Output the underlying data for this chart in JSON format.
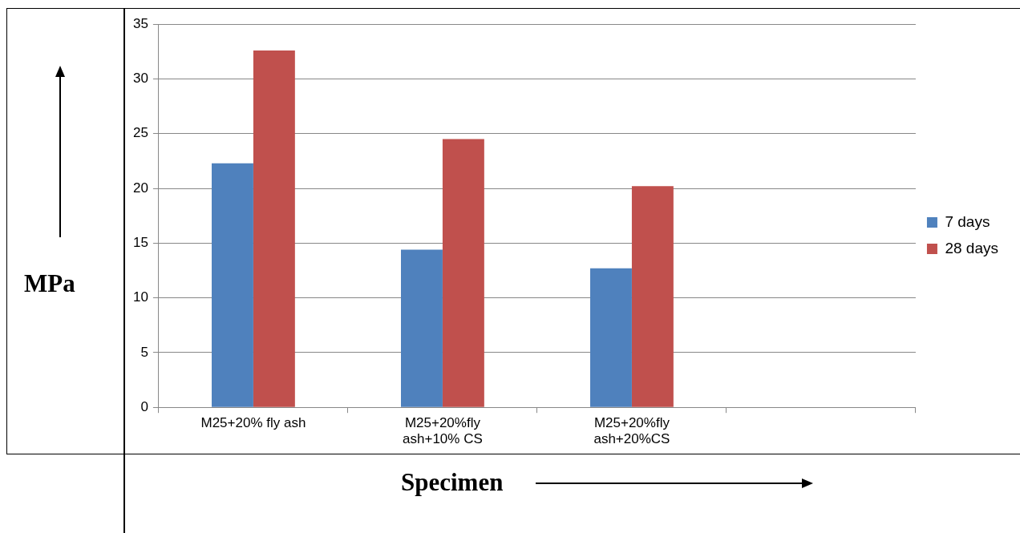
{
  "chart_data": {
    "type": "bar",
    "xlabel": "Specimen",
    "ylabel": "MPa",
    "categories": [
      "M25+20% fly ash",
      "M25+20%fly ash+10% CS",
      "M25+20%fly ash+20%CS",
      null
    ],
    "series": [
      {
        "name": "7 days",
        "color": "#4f81bd",
        "values": [
          22.3,
          14.4,
          12.7,
          null
        ]
      },
      {
        "name": "28 days",
        "color": "#c0504d",
        "values": [
          32.6,
          24.5,
          20.2,
          null
        ]
      }
    ],
    "ylim": [
      0,
      35
    ],
    "yticks": [
      0,
      5,
      10,
      15,
      20,
      25,
      30,
      35
    ],
    "grid": "y",
    "legend": "right"
  }
}
